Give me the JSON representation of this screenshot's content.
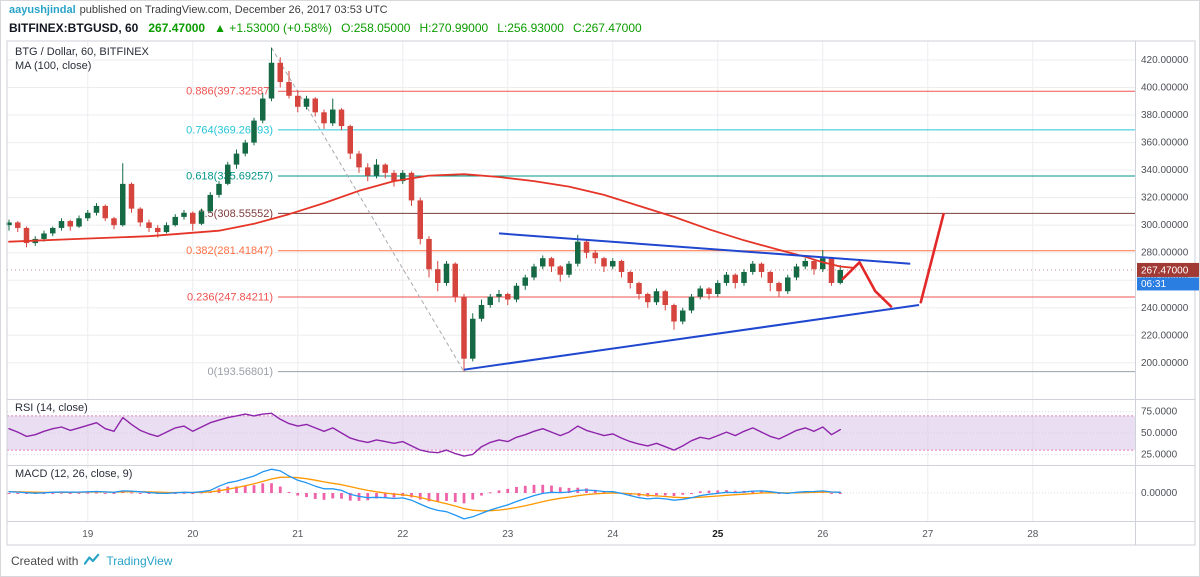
{
  "header": {
    "publisher": "aayushjindal",
    "published_text": "published on TradingView.com, December 26, 2017 03:53 UTC"
  },
  "symbol_bar": {
    "symbol": "BITFINEX:BTGUSD, 60",
    "last": "267.47000",
    "change": "▲ +1.53000 (+0.58%)",
    "open": "O:258.05000",
    "high": "H:270.99000",
    "low": "L:256.93000",
    "close": "C:267.47000"
  },
  "legend": {
    "series_label": "BTG / Dollar, 60, BITFINEX",
    "ma_label": "MA (100, close)"
  },
  "footer": {
    "created_with": "Created with",
    "brand": "TradingView"
  },
  "chart_data": {
    "type": "candlestick",
    "interval": "60",
    "last_price": 267.47,
    "price_badge": {
      "value": "267.47000",
      "countdown": "06:31"
    },
    "price_axis": [
      {
        "v": 420,
        "label": "420.00000"
      },
      {
        "v": 400,
        "label": "400.00000"
      },
      {
        "v": 380,
        "label": "380.00000"
      },
      {
        "v": 360,
        "label": "360.00000"
      },
      {
        "v": 340,
        "label": "340.00000"
      },
      {
        "v": 320,
        "label": "320.00000"
      },
      {
        "v": 300,
        "label": "300.00000"
      },
      {
        "v": 280,
        "label": "280.00000"
      },
      {
        "v": 260,
        "label": "260.00000"
      },
      {
        "v": 240,
        "label": "240.00000"
      },
      {
        "v": 220,
        "label": "220.00000"
      },
      {
        "v": 200,
        "label": "200.00000"
      }
    ],
    "x_labels": [
      {
        "t": "19",
        "i": 9,
        "bold": false
      },
      {
        "t": "20",
        "i": 21,
        "bold": false
      },
      {
        "t": "21",
        "i": 33,
        "bold": false
      },
      {
        "t": "22",
        "i": 45,
        "bold": false
      },
      {
        "t": "23",
        "i": 57,
        "bold": false
      },
      {
        "t": "24",
        "i": 69,
        "bold": false
      },
      {
        "t": "25",
        "i": 81,
        "bold": true
      },
      {
        "t": "26",
        "i": 93,
        "bold": false
      },
      {
        "t": "27",
        "i": 105,
        "bold": false
      },
      {
        "t": "28",
        "i": 117,
        "bold": false
      }
    ],
    "fib_levels": [
      {
        "ratio": "0.886",
        "value": 397.32587,
        "label": "0.886(397.32587)",
        "color": "#ef5350"
      },
      {
        "ratio": "0.764",
        "value": 369.26893,
        "label": "0.764(369.26893)",
        "color": "#26c6da"
      },
      {
        "ratio": "0.618",
        "value": 335.69257,
        "label": "0.618(335.69257)",
        "color": "#009688"
      },
      {
        "ratio": "0.5",
        "value": 308.55552,
        "label": "0.5(308.55552)",
        "color": "#7e3b3b"
      },
      {
        "ratio": "0.382",
        "value": 281.41847,
        "label": "0.382(281.41847)",
        "color": "#ff7043"
      },
      {
        "ratio": "0.236",
        "value": 247.84211,
        "label": "0.236(247.84211)",
        "color": "#ef5350"
      },
      {
        "ratio": "0",
        "value": 193.56801,
        "label": "0(193.56801)",
        "color": "#9aa0a6"
      }
    ],
    "fib_diagonal": {
      "i1": 30,
      "p1": 429,
      "i2": 52,
      "p2": 193.57
    },
    "trendlines": [
      {
        "name": "upper-resistance",
        "i1": 56,
        "p1": 294,
        "i2": 103,
        "p2": 272
      },
      {
        "name": "lower-support",
        "i1": 52,
        "p1": 195,
        "i2": 104,
        "p2": 242
      }
    ],
    "projection": [
      {
        "points": [
          [
            95.3,
            261
          ],
          [
            97.2,
            273
          ],
          [
            99,
            252
          ],
          [
            100.8,
            241
          ]
        ]
      },
      {
        "points": [
          [
            104.2,
            244
          ],
          [
            106.8,
            308
          ]
        ]
      }
    ],
    "candles": [
      [
        300,
        304,
        296,
        302
      ],
      [
        302,
        303,
        295,
        298
      ],
      [
        298,
        299,
        284,
        287
      ],
      [
        287,
        292,
        285,
        290
      ],
      [
        290,
        296,
        288,
        294
      ],
      [
        294,
        299,
        292,
        298
      ],
      [
        298,
        305,
        296,
        303
      ],
      [
        303,
        304,
        296,
        299
      ],
      [
        299,
        307,
        298,
        305
      ],
      [
        305,
        311,
        303,
        309
      ],
      [
        309,
        316,
        307,
        314
      ],
      [
        314,
        315,
        303,
        305
      ],
      [
        305,
        306,
        297,
        300
      ],
      [
        300,
        345,
        299,
        330
      ],
      [
        330,
        331,
        309,
        312
      ],
      [
        312,
        313,
        299,
        302
      ],
      [
        302,
        304,
        295,
        298
      ],
      [
        298,
        300,
        291,
        295
      ],
      [
        295,
        302,
        294,
        300
      ],
      [
        300,
        308,
        299,
        306
      ],
      [
        306,
        311,
        304,
        309
      ],
      [
        309,
        310,
        296,
        301
      ],
      [
        301,
        312,
        300,
        310
      ],
      [
        310,
        324,
        309,
        322
      ],
      [
        322,
        332,
        320,
        330
      ],
      [
        330,
        346,
        329,
        344
      ],
      [
        344,
        355,
        341,
        352
      ],
      [
        352,
        362,
        350,
        360
      ],
      [
        360,
        378,
        358,
        376
      ],
      [
        376,
        396,
        374,
        392
      ],
      [
        392,
        429,
        390,
        418
      ],
      [
        418,
        422,
        400,
        404
      ],
      [
        404,
        412,
        392,
        394
      ],
      [
        394,
        398,
        382,
        386
      ],
      [
        386,
        394,
        384,
        392
      ],
      [
        392,
        393,
        379,
        382
      ],
      [
        382,
        384,
        370,
        374
      ],
      [
        374,
        392,
        372,
        384
      ],
      [
        384,
        385,
        369,
        372
      ],
      [
        372,
        373,
        348,
        352
      ],
      [
        352,
        354,
        338,
        342
      ],
      [
        342,
        345,
        332,
        336
      ],
      [
        336,
        348,
        334,
        344
      ],
      [
        344,
        345,
        334,
        338
      ],
      [
        338,
        340,
        328,
        332
      ],
      [
        332,
        340,
        330,
        338
      ],
      [
        338,
        339,
        314,
        318
      ],
      [
        318,
        320,
        286,
        290
      ],
      [
        290,
        292,
        262,
        268
      ],
      [
        268,
        274,
        252,
        258
      ],
      [
        258,
        274,
        256,
        272
      ],
      [
        272,
        273,
        244,
        248
      ],
      [
        248,
        250,
        193.57,
        203
      ],
      [
        203,
        236,
        201,
        232
      ],
      [
        232,
        246,
        230,
        242
      ],
      [
        242,
        250,
        240,
        248
      ],
      [
        248,
        253,
        244,
        250
      ],
      [
        250,
        251,
        242,
        246
      ],
      [
        246,
        258,
        244,
        256
      ],
      [
        256,
        264,
        253,
        262
      ],
      [
        262,
        272,
        260,
        270
      ],
      [
        270,
        278,
        268,
        276
      ],
      [
        276,
        277,
        266,
        270
      ],
      [
        270,
        271,
        259,
        264
      ],
      [
        264,
        274,
        262,
        272
      ],
      [
        272,
        293,
        270,
        288
      ],
      [
        288,
        289,
        276,
        280
      ],
      [
        280,
        282,
        272,
        276
      ],
      [
        276,
        277,
        266,
        270
      ],
      [
        270,
        276,
        268,
        274
      ],
      [
        274,
        275,
        262,
        266
      ],
      [
        266,
        267,
        254,
        258
      ],
      [
        258,
        259,
        246,
        250
      ],
      [
        250,
        251,
        240,
        244
      ],
      [
        244,
        254,
        242,
        252
      ],
      [
        252,
        253,
        238,
        242
      ],
      [
        242,
        243,
        224,
        230
      ],
      [
        230,
        240,
        228,
        238
      ],
      [
        238,
        250,
        236,
        248
      ],
      [
        248,
        256,
        246,
        254
      ],
      [
        254,
        255,
        246,
        250
      ],
      [
        250,
        260,
        248,
        258
      ],
      [
        258,
        266,
        256,
        264
      ],
      [
        264,
        265,
        254,
        258
      ],
      [
        258,
        268,
        256,
        266
      ],
      [
        266,
        274,
        264,
        272
      ],
      [
        272,
        273,
        262,
        266
      ],
      [
        266,
        267,
        252,
        258
      ],
      [
        258,
        259,
        248,
        252
      ],
      [
        252,
        264,
        250,
        262
      ],
      [
        262,
        272,
        260,
        270
      ],
      [
        270,
        276,
        268,
        274
      ],
      [
        274,
        275,
        264,
        268
      ],
      [
        268,
        282,
        266,
        276
      ],
      [
        276,
        277,
        256,
        258
      ],
      [
        258.05,
        270.99,
        256.93,
        267.47
      ]
    ],
    "ma_points": [
      [
        0,
        288
      ],
      [
        8,
        290
      ],
      [
        16,
        292
      ],
      [
        24,
        296
      ],
      [
        28,
        301
      ],
      [
        32,
        308
      ],
      [
        36,
        316
      ],
      [
        40,
        325
      ],
      [
        44,
        332
      ],
      [
        48,
        336
      ],
      [
        52,
        337
      ],
      [
        56,
        335
      ],
      [
        60,
        332
      ],
      [
        64,
        328
      ],
      [
        68,
        322
      ],
      [
        72,
        314
      ],
      [
        76,
        306
      ],
      [
        80,
        297
      ],
      [
        84,
        289
      ],
      [
        88,
        282
      ],
      [
        91,
        277
      ],
      [
        93,
        273
      ],
      [
        95,
        270
      ],
      [
        96.5,
        269
      ]
    ],
    "rsi": {
      "label": "RSI (14, close)",
      "ticks": [
        {
          "v": 75,
          "label": "75.0000"
        },
        {
          "v": 50,
          "label": "50.0000"
        },
        {
          "v": 25,
          "label": "25.0000"
        }
      ],
      "band": [
        30,
        70
      ],
      "values": [
        55,
        51,
        46,
        48,
        52,
        55,
        57,
        53,
        56,
        59,
        62,
        55,
        52,
        68,
        60,
        53,
        49,
        46,
        51,
        56,
        58,
        52,
        57,
        62,
        65,
        68,
        70,
        72,
        70,
        72,
        73,
        66,
        61,
        58,
        60,
        56,
        52,
        56,
        50,
        44,
        41,
        39,
        42,
        40,
        38,
        40,
        35,
        30,
        28,
        27,
        30,
        26,
        23,
        25,
        34,
        39,
        42,
        40,
        45,
        48,
        52,
        55,
        51,
        47,
        51,
        58,
        53,
        50,
        47,
        49,
        44,
        40,
        37,
        35,
        38,
        34,
        30,
        35,
        41,
        45,
        43,
        47,
        51,
        47,
        52,
        56,
        51,
        46,
        43,
        48,
        53,
        56,
        52,
        57,
        48,
        54
      ]
    },
    "macd": {
      "label": "MACD (12, 26, close, 9)",
      "zero_label": "0.00000",
      "values": [
        1.5,
        1.0,
        0.3,
        -0.2,
        0.2,
        0.8,
        1.2,
        0.9,
        1.1,
        1.4,
        1.8,
        1.3,
        0.8,
        2.5,
        2.2,
        1.4,
        0.6,
        -0.2,
        -0.5,
        0.2,
        0.8,
        0.6,
        1.5,
        3.0,
        8,
        12,
        14,
        17,
        20,
        25,
        28,
        26,
        20,
        15,
        12,
        8,
        5,
        5,
        3,
        -1.5,
        -4,
        -5.5,
        -5,
        -5.5,
        -6.5,
        -5.8,
        -8.5,
        -13,
        -17.5,
        -20.5,
        -22,
        -26,
        -30.5,
        -28,
        -24,
        -20,
        -17,
        -14,
        -10,
        -6.5,
        -3,
        -0.5,
        0.8,
        0.5,
        1.2,
        3,
        3.5,
        2.8,
        1.8,
        1.5,
        -0.5,
        -3,
        -5.5,
        -7,
        -6,
        -7,
        -8.5,
        -7.5,
        -5.5,
        -3,
        -1.5,
        -0.5,
        0.8,
        0.5,
        1.2,
        2.2,
        2.5,
        1.5,
        0.2,
        -0.5,
        0.8,
        1.5,
        1.8,
        2.5,
        1.2,
        0.8
      ]
    },
    "colors": {
      "up": "#156a45",
      "down": "#d6443e",
      "ma": "#e53528",
      "trendline": "#2047cf",
      "projection": "#e22828",
      "rsi": "#8e24aa",
      "rsi_band": "#d9c2e8",
      "rsi_band_line": "#e584bc",
      "macd": "#2196f3",
      "macd_signal": "#ff9800",
      "macd_hist": "#ec4699",
      "badge_bg": "#a13a35",
      "countdown_bg": "#2a7de1",
      "axis_text": "#4c4f56",
      "grid": "#ebedf0",
      "frame": "#cfd2d8"
    }
  }
}
